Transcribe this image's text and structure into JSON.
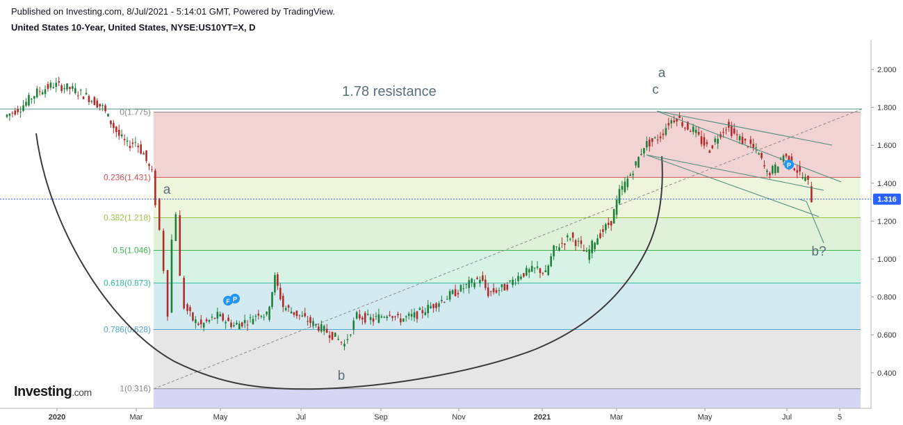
{
  "header": {
    "published": "Published on Investing.com, 8/Jul/2021 - 5:14:01 GMT, Powered by TradingView.",
    "instrument": "United States 10-Year, United States, NYSE:US10YT=X, D"
  },
  "logo": {
    "name": "Investing",
    "suffix": ".com"
  },
  "chart_data": {
    "type": "candlestick",
    "y_axis": {
      "ticks": [
        "2.000",
        "1.800",
        "1.600",
        "1.400",
        "1.200",
        "1.000",
        "0.800",
        "0.600",
        "0.400"
      ],
      "min": 0.25,
      "max": 2.1,
      "position": "right"
    },
    "x_axis": {
      "ticks": [
        "2020",
        "Mar",
        "May",
        "Jul",
        "Sep",
        "Nov",
        "2021",
        "Mar",
        "May",
        "Jul",
        "5"
      ]
    },
    "last_price": {
      "value": 1.316,
      "label": "1.316",
      "color": "#2962ff"
    },
    "fibonacci": [
      {
        "label": "0(1.775)",
        "value": 1.775,
        "color": "#f2d3d3",
        "line": "#888888"
      },
      {
        "label": "0.236(1.431)",
        "value": 1.431,
        "color": "#eef5dd",
        "line": "#d05050"
      },
      {
        "label": "0.382(1.218)",
        "value": 1.218,
        "color": "#dff2d9",
        "line": "#9cc24a"
      },
      {
        "label": "0.5(1.046)",
        "value": 1.046,
        "color": "#d6f3e6",
        "line": "#3cb44a"
      },
      {
        "label": "0.618(0.873)",
        "value": 0.873,
        "color": "#d3eaf1",
        "line": "#33b89a"
      },
      {
        "label": "0.786(0.628)",
        "value": 0.628,
        "color": "#e6e6e6",
        "line": "#4fa3c8"
      },
      {
        "label": "1(0.316)",
        "value": 0.316,
        "color": "#d6d6f4",
        "line": "#888888"
      }
    ],
    "price_path": [
      [
        0,
        1.75
      ],
      [
        4,
        1.8
      ],
      [
        8,
        1.88
      ],
      [
        12,
        1.92
      ],
      [
        16,
        1.9
      ],
      [
        20,
        1.86
      ],
      [
        24,
        1.8
      ],
      [
        26,
        1.72
      ],
      [
        28,
        1.65
      ],
      [
        30,
        1.6
      ],
      [
        32,
        1.62
      ],
      [
        34,
        1.55
      ],
      [
        36,
        1.45
      ],
      [
        37,
        1.3
      ],
      [
        38,
        1.15
      ],
      [
        39,
        0.95
      ],
      [
        40,
        0.72
      ],
      [
        41,
        1.1
      ],
      [
        42,
        1.25
      ],
      [
        43,
        0.9
      ],
      [
        44,
        0.75
      ],
      [
        46,
        0.68
      ],
      [
        48,
        0.65
      ],
      [
        52,
        0.7
      ],
      [
        56,
        0.65
      ],
      [
        60,
        0.68
      ],
      [
        62,
        0.72
      ],
      [
        64,
        0.7
      ],
      [
        66,
        0.9
      ],
      [
        68,
        0.75
      ],
      [
        72,
        0.7
      ],
      [
        76,
        0.65
      ],
      [
        80,
        0.6
      ],
      [
        83,
        0.55
      ],
      [
        86,
        0.7
      ],
      [
        90,
        0.68
      ],
      [
        94,
        0.72
      ],
      [
        96,
        0.68
      ],
      [
        100,
        0.7
      ],
      [
        104,
        0.75
      ],
      [
        108,
        0.8
      ],
      [
        112,
        0.85
      ],
      [
        116,
        0.9
      ],
      [
        118,
        0.82
      ],
      [
        122,
        0.85
      ],
      [
        126,
        0.92
      ],
      [
        130,
        0.95
      ],
      [
        132,
        0.92
      ],
      [
        134,
        1.05
      ],
      [
        138,
        1.12
      ],
      [
        140,
        1.08
      ],
      [
        142,
        1.02
      ],
      [
        144,
        1.1
      ],
      [
        148,
        1.2
      ],
      [
        150,
        1.35
      ],
      [
        152,
        1.42
      ],
      [
        154,
        1.5
      ],
      [
        156,
        1.6
      ],
      [
        158,
        1.62
      ],
      [
        160,
        1.65
      ],
      [
        162,
        1.72
      ],
      [
        164,
        1.75
      ],
      [
        166,
        1.7
      ],
      [
        168,
        1.68
      ],
      [
        170,
        1.62
      ],
      [
        172,
        1.58
      ],
      [
        174,
        1.65
      ],
      [
        176,
        1.7
      ],
      [
        178,
        1.66
      ],
      [
        180,
        1.62
      ],
      [
        182,
        1.6
      ],
      [
        184,
        1.55
      ],
      [
        186,
        1.45
      ],
      [
        188,
        1.48
      ],
      [
        190,
        1.55
      ],
      [
        192,
        1.5
      ],
      [
        194,
        1.45
      ],
      [
        196,
        1.4
      ],
      [
        197,
        1.316
      ]
    ],
    "annotations": [
      {
        "text": "1.78 resistance"
      },
      {
        "text": "a"
      },
      {
        "text": "c"
      },
      {
        "text": "a"
      },
      {
        "text": "b"
      },
      {
        "text": "b?"
      }
    ],
    "markers": [
      "F",
      "P",
      "P"
    ]
  }
}
